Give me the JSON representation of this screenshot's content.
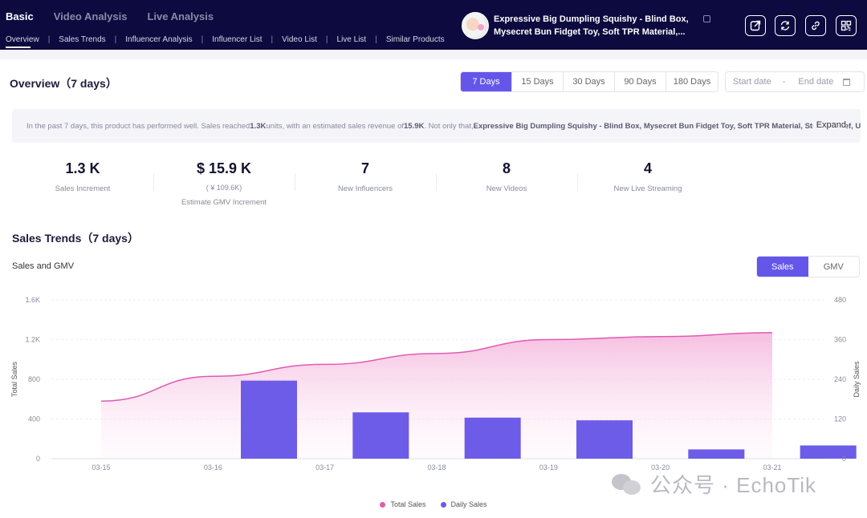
{
  "header": {
    "main_tabs": [
      {
        "label": "Basic",
        "active": true
      },
      {
        "label": "Video Analysis",
        "active": false
      },
      {
        "label": "Live Analysis",
        "active": false
      }
    ],
    "sub_tabs": [
      "Overview",
      "Sales Trends",
      "Influencer Analysis",
      "Influencer List",
      "Video List",
      "Live List",
      "Similar Products"
    ],
    "product_title_line1": "Expressive Big Dumpling Squishy - Blind Box,",
    "product_title_line2": "Mysecret Bun Fidget Toy, Soft TPR Material,...",
    "icons": [
      "share-icon",
      "refresh-icon",
      "link-icon",
      "qr-code-icon"
    ]
  },
  "overview": {
    "title": "Overview（7 days）",
    "ranges": [
      "7 Days",
      "15 Days",
      "30 Days",
      "90 Days",
      "180 Days"
    ],
    "active_range": "7 Days",
    "date_start_placeholder": "Start date",
    "date_end_placeholder": "End date",
    "summary_prefix": "In the past 7 days, this product has performed well. Sales reached ",
    "summary_units": "1.3K",
    "summary_mid": " units, with an estimated sales revenue of ",
    "summary_revenue": "15.9K",
    "summary_mid2": ". Not only that, ",
    "summary_product": "Expressive Big Dumpling Squishy - Blind Box, Mysecret Bun Fidget Toy, Soft TPR Material, Stress Relief, U",
    "expand_label": "Expand"
  },
  "stats": [
    {
      "value": "1.3 K",
      "sub": "",
      "label": "Sales Increment"
    },
    {
      "value": "$ 15.9 K",
      "sub": "( ¥ 109.6K)",
      "label": "Estimate GMV Increment"
    },
    {
      "value": "7",
      "sub": "",
      "label": "New Influencers"
    },
    {
      "value": "8",
      "sub": "",
      "label": "New Videos"
    },
    {
      "value": "4",
      "sub": "",
      "label": "New Live Streaming"
    }
  ],
  "trends": {
    "title": "Sales Trends（7 days）",
    "subtitle": "Sales and GMV",
    "toggle": [
      "Sales",
      "GMV"
    ],
    "active_toggle": "Sales"
  },
  "chart_data": {
    "type": "bar",
    "categories": [
      "03-15",
      "03-16",
      "03-17",
      "03-18",
      "03-19",
      "03-20",
      "03-21"
    ],
    "series": [
      {
        "name": "Total Sales",
        "kind": "area-line",
        "axis": "left",
        "color": "#e05bb4",
        "values": [
          580,
          830,
          950,
          1060,
          1200,
          1230,
          1270
        ]
      },
      {
        "name": "Daily Sales",
        "kind": "bar",
        "axis": "right",
        "color": "#6d5ce8",
        "values": [
          0,
          236,
          140,
          124,
          116,
          28,
          40
        ]
      }
    ],
    "y_left": {
      "label": "Total Sales",
      "ticks": [
        "0",
        "400",
        "800",
        "1.2K",
        "1.6K"
      ],
      "range": [
        0,
        1600
      ]
    },
    "y_right": {
      "label": "Daily Sales",
      "ticks": [
        "0",
        "120",
        "240",
        "360",
        "480"
      ],
      "range": [
        0,
        480
      ]
    },
    "grid": true,
    "legend": "bottom-center"
  },
  "watermark": "公众号 · EchoTik"
}
